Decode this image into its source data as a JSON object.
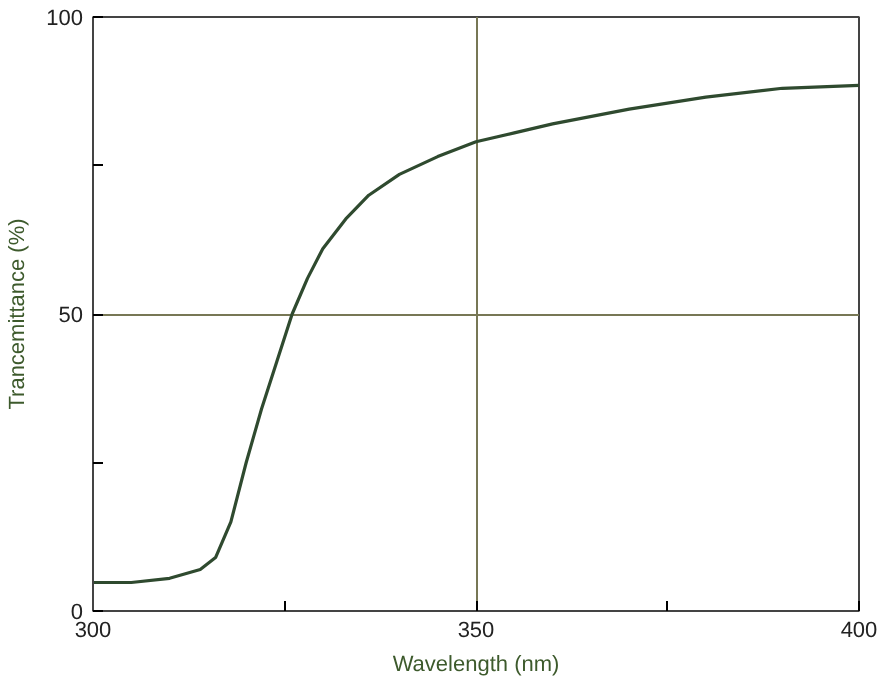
{
  "chart_data": {
    "type": "line",
    "xlabel": "Wavelength (nm)",
    "ylabel": "Trancemittance (%)",
    "x": [
      300,
      305,
      310,
      314,
      316,
      318,
      320,
      322,
      324,
      326,
      328,
      330,
      333,
      336,
      340,
      345,
      350,
      355,
      360,
      370,
      380,
      390,
      400
    ],
    "series": [
      {
        "color": "#2f4a2f",
        "values": [
          4.8,
          4.8,
          5.5,
          7,
          9,
          15,
          25,
          34,
          42,
          50,
          56,
          61,
          66,
          70,
          73.5,
          76.5,
          79,
          80.5,
          82,
          84.5,
          86.5,
          88,
          88.5
        ]
      }
    ],
    "xlim": [
      300,
      400
    ],
    "ylim": [
      0,
      100
    ],
    "xticks": [
      300,
      {
        "value": 325,
        "label": null
      },
      350,
      {
        "value": 375,
        "label": null
      },
      400
    ],
    "yticks": [
      0,
      {
        "value": 25,
        "label": null
      },
      50,
      {
        "value": 75,
        "label": null
      },
      100
    ],
    "grid": true,
    "marker": "none",
    "line_style": "solid"
  }
}
